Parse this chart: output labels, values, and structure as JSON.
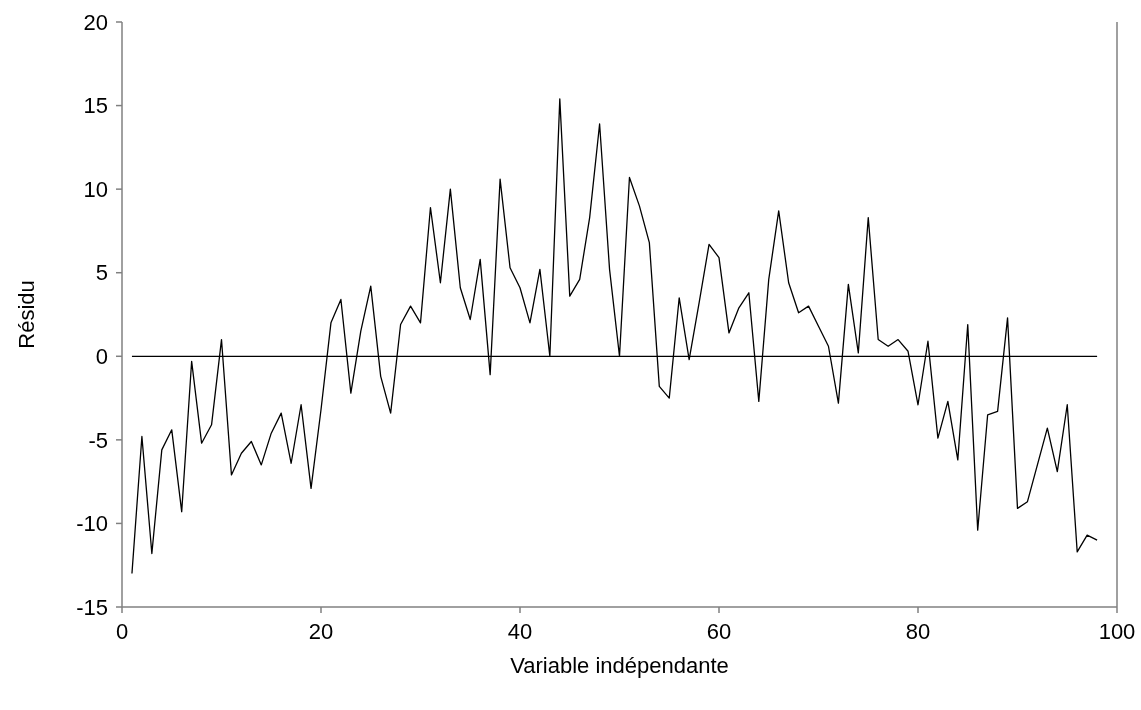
{
  "chart_data": {
    "type": "line",
    "xlabel": "Variable indépendante",
    "ylabel": "Résidu",
    "xlim": [
      0,
      100
    ],
    "xticks": [
      0,
      20,
      40,
      60,
      80,
      100
    ],
    "ylim": [
      -15,
      20
    ],
    "yticks": [
      -15,
      -10,
      -5,
      0,
      5,
      10,
      15,
      20
    ],
    "grid": false,
    "marker": "none",
    "line_style": "solid",
    "series": [
      {
        "color": "#000000",
        "x": [
          1,
          2,
          3,
          4,
          5,
          6,
          7,
          8,
          9,
          10,
          11,
          12,
          13,
          14,
          15,
          16,
          17,
          18,
          19,
          20,
          21,
          22,
          23,
          24,
          25,
          26,
          27,
          28,
          29,
          30,
          31,
          32,
          33,
          34,
          35,
          36,
          37,
          38,
          39,
          40,
          41,
          42,
          43,
          44,
          45,
          46,
          47,
          48,
          49,
          50,
          51,
          52,
          53,
          54,
          55,
          56,
          57,
          58,
          59,
          60,
          61,
          62,
          63,
          64,
          65,
          66,
          67,
          68,
          69,
          70,
          71,
          72,
          73,
          74,
          75,
          76,
          77,
          78,
          79,
          80,
          81,
          82,
          83,
          84,
          85,
          86,
          87,
          88,
          89,
          90,
          91,
          92,
          93,
          94,
          95,
          96,
          97,
          98
        ],
        "values": [
          -13,
          -4.8,
          -11.8,
          -5.6,
          -4.4,
          -9.3,
          -0.3,
          -5.2,
          -4.1,
          1.0,
          -7.1,
          -5.8,
          -5.1,
          -6.5,
          -4.6,
          -3.4,
          -6.4,
          -2.9,
          -7.9,
          -3.2,
          2.0,
          3.4,
          -2.2,
          1.5,
          4.2,
          -1.2,
          -3.4,
          1.9,
          3.0,
          2.0,
          8.9,
          4.4,
          10.0,
          4.1,
          2.2,
          5.8,
          -1.1,
          10.6,
          5.3,
          4.1,
          2.0,
          5.2,
          0,
          15.4,
          3.6,
          4.6,
          8.3,
          13.9,
          5.2,
          0,
          10.7,
          9.0,
          6.8,
          -1.8,
          -2.5,
          3.5,
          -0.2,
          3.2,
          6.7,
          5.9,
          1.4,
          2.9,
          3.8,
          -2.7,
          4.6,
          8.7,
          4.4,
          2.6,
          3.0,
          1.8,
          0.6,
          -2.8,
          4.3,
          0.2,
          8.3,
          1.0,
          0.6,
          1.0,
          0.3,
          -2.9,
          0.9,
          -4.9,
          -2.7,
          -6.2,
          1.9,
          -10.4,
          -3.5,
          -3.3,
          2.3,
          -9.1,
          -8.7,
          -6.5,
          -4.3,
          -6.9,
          -2.9,
          -11.7,
          -10.7,
          -11.0
        ]
      },
      {
        "color": "#000000",
        "x": [
          1,
          98
        ],
        "values": [
          0,
          0
        ]
      }
    ]
  }
}
